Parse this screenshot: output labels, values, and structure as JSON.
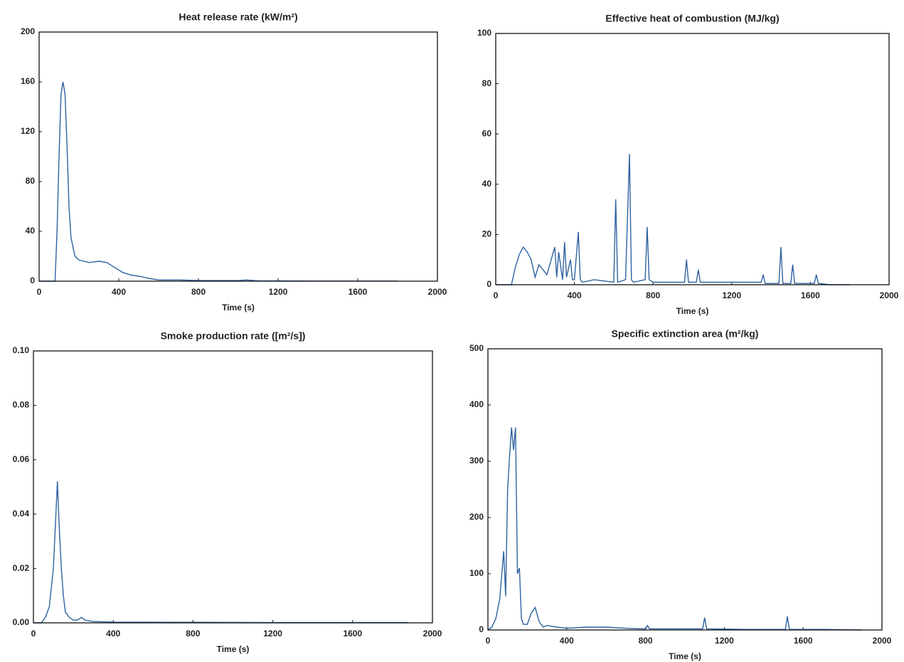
{
  "chart_data": [
    {
      "type": "line",
      "title": "Heat release rate (kW/m²)",
      "x_label": "Time (s)",
      "color": "#2f62a0",
      "x": [
        0,
        80,
        90,
        100,
        110,
        120,
        130,
        140,
        150,
        160,
        180,
        200,
        250,
        300,
        340,
        380,
        420,
        460,
        500,
        560,
        600,
        700,
        800,
        900,
        1000,
        1040,
        1100,
        1200,
        1400,
        1600,
        1800
      ],
      "values": [
        0,
        0,
        40,
        100,
        150,
        160,
        150,
        110,
        60,
        35,
        20,
        17,
        15,
        16,
        15,
        11,
        7,
        5,
        4,
        2,
        1,
        1,
        0.5,
        0.5,
        0.5,
        1,
        0.3,
        0.2,
        0.1,
        0.1,
        0.1
      ],
      "xlim": [
        0,
        2000
      ],
      "xticks": [
        0,
        400,
        800,
        1200,
        1600,
        2000
      ],
      "ylim": [
        0,
        200
      ],
      "yticks": [
        0,
        40,
        80,
        120,
        160,
        200
      ]
    },
    {
      "type": "line",
      "title": "Effective heat of combustion (MJ/kg)",
      "x_label": "Time (s)",
      "color": "#2f62a0",
      "x": [
        0,
        80,
        100,
        120,
        140,
        160,
        180,
        200,
        220,
        260,
        300,
        310,
        320,
        340,
        350,
        360,
        380,
        390,
        400,
        420,
        430,
        440,
        500,
        600,
        610,
        620,
        660,
        680,
        690,
        700,
        760,
        770,
        780,
        800,
        960,
        970,
        980,
        1020,
        1030,
        1040,
        1200,
        1350,
        1360,
        1370,
        1440,
        1450,
        1460,
        1500,
        1510,
        1520,
        1620,
        1630,
        1640,
        1700,
        1800
      ],
      "values": [
        0,
        0,
        7,
        12,
        15,
        13,
        10,
        3,
        8,
        4,
        15,
        3,
        13,
        2,
        17,
        3,
        10,
        2,
        2,
        21,
        2,
        1,
        2,
        1,
        34,
        1,
        2,
        52,
        2,
        1,
        2,
        23,
        2,
        1,
        1,
        10,
        1,
        1,
        6,
        1,
        1,
        1,
        4,
        0.5,
        0.5,
        15,
        0.5,
        0.5,
        8,
        0.5,
        0.5,
        4,
        0.5,
        0,
        0
      ],
      "xlim": [
        0,
        2000
      ],
      "xticks": [
        0,
        400,
        800,
        1200,
        1600,
        2000
      ],
      "ylim": [
        0,
        100
      ],
      "yticks": [
        0,
        20,
        40,
        60,
        80,
        100
      ]
    },
    {
      "type": "line",
      "title": "Smoke production rate ([m²/s])",
      "x_label": "Time (s)",
      "color": "#2f62a0",
      "x": [
        0,
        40,
        60,
        80,
        100,
        110,
        120,
        130,
        140,
        150,
        160,
        180,
        200,
        220,
        240,
        260,
        300,
        400,
        800,
        1200,
        1600,
        1880
      ],
      "values": [
        0,
        0,
        0.002,
        0.006,
        0.02,
        0.036,
        0.052,
        0.034,
        0.02,
        0.01,
        0.004,
        0.002,
        0.001,
        0.001,
        0.002,
        0.001,
        0.0005,
        0.0003,
        0.0002,
        0.0001,
        0.0001,
        0.0001
      ],
      "xlim": [
        0,
        2000
      ],
      "xticks": [
        0,
        400,
        800,
        1200,
        1600,
        2000
      ],
      "ylim": [
        0,
        0.1
      ],
      "yticks": [
        {
          "value": 0,
          "label": "0.00"
        },
        {
          "value": 0.02,
          "label": "0.02"
        },
        {
          "value": 0.04,
          "label": "0.04"
        },
        {
          "value": 0.06,
          "label": "0.06"
        },
        {
          "value": 0.08,
          "label": "0.08"
        },
        {
          "value": 0.1,
          "label": "0.10"
        }
      ]
    },
    {
      "type": "line",
      "title": "Specific extinction area (m²/kg)",
      "x_label": "Time (s)",
      "color": "#2f62a0",
      "x": [
        0,
        20,
        40,
        60,
        80,
        90,
        100,
        110,
        120,
        130,
        140,
        150,
        160,
        170,
        180,
        200,
        220,
        240,
        260,
        280,
        300,
        350,
        400,
        500,
        600,
        700,
        800,
        810,
        820,
        1000,
        1090,
        1100,
        1110,
        1300,
        1510,
        1520,
        1530,
        1700,
        1900
      ],
      "values": [
        0,
        5,
        20,
        55,
        140,
        60,
        250,
        310,
        360,
        320,
        360,
        100,
        110,
        20,
        10,
        10,
        30,
        40,
        15,
        5,
        8,
        5,
        3,
        5,
        5,
        3,
        2,
        8,
        2,
        2,
        2,
        22,
        2,
        1,
        1,
        24,
        1,
        1,
        0
      ],
      "xlim": [
        0,
        2000
      ],
      "xticks": [
        0,
        400,
        800,
        1200,
        1600,
        2000
      ],
      "ylim": [
        0,
        500
      ],
      "yticks": [
        0,
        100,
        200,
        300,
        400,
        500
      ]
    }
  ]
}
